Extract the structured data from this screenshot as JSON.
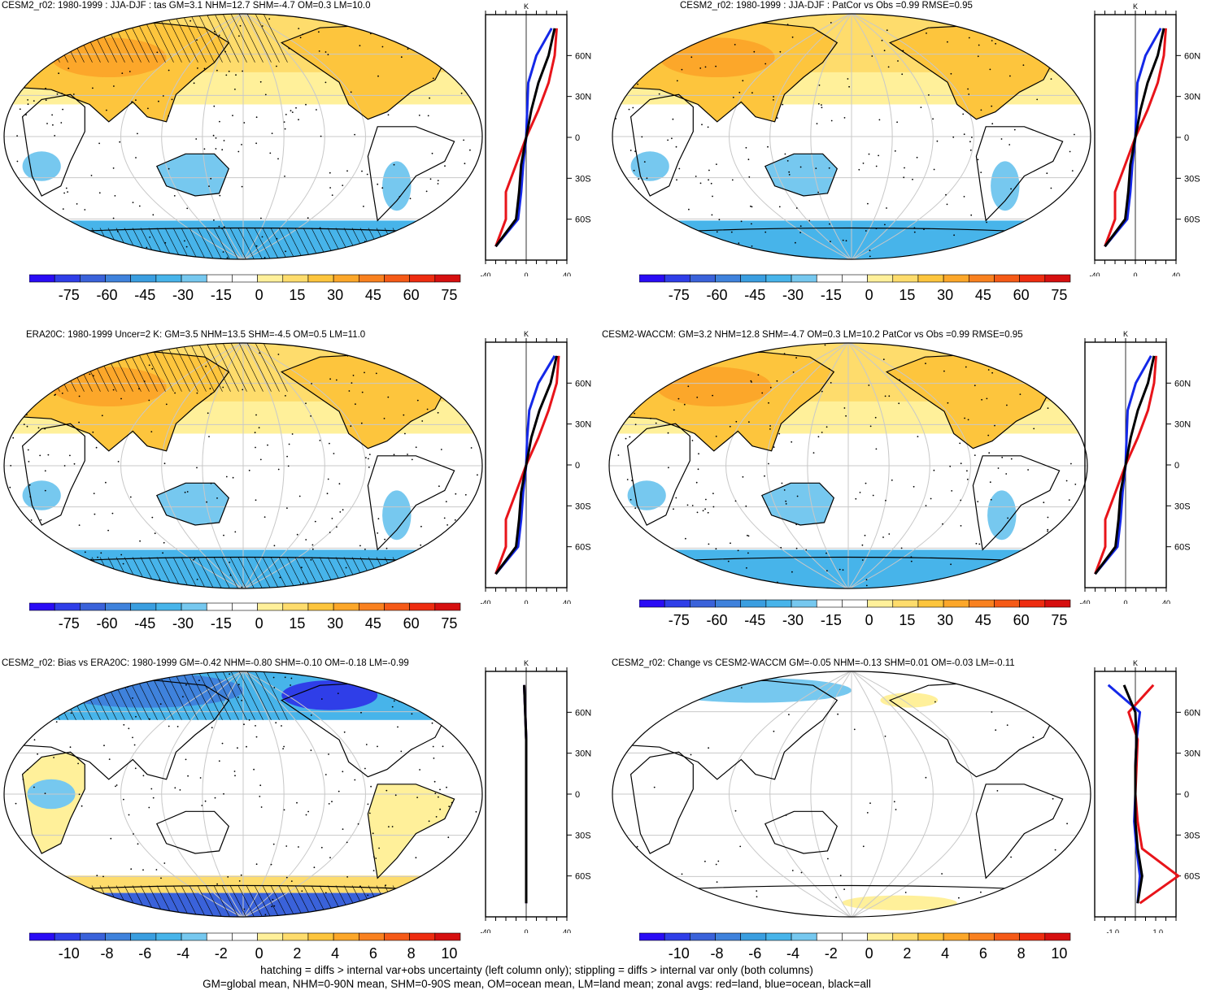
{
  "panels": [
    {
      "title": "CESM2_r02: 1980-1999 : JJA-DJF : tas GM=3.1 NHM=12.7 SHM=-4.7 OM=0.3 LM=10.0",
      "colorbar": [
        "-75",
        "-60",
        "-45",
        "-30",
        "-15",
        "0",
        "15",
        "30",
        "45",
        "60",
        "75"
      ],
      "zonal_xticks": [
        "-40",
        "0",
        "40"
      ],
      "zonal_unit": "K",
      "lat_labels": [
        "60N",
        "30N",
        "0",
        "30S",
        "60S"
      ],
      "hatching": true
    },
    {
      "title": "CESM2_r02: 1980-1999 : JJA-DJF : PatCor vs Obs =0.99 RMSE=0.95",
      "colorbar": [
        "-75",
        "-60",
        "-45",
        "-30",
        "-15",
        "0",
        "15",
        "30",
        "45",
        "60",
        "75"
      ],
      "zonal_xticks": [
        "-40",
        "0",
        "40"
      ],
      "zonal_unit": "K",
      "lat_labels": [
        "60N",
        "30N",
        "0",
        "30S",
        "60S"
      ],
      "hatching": false
    },
    {
      "title": "ERA20C: 1980-1999 Uncer=2 K: GM=3.5 NHM=13.5 SHM=-4.5 OM=0.5 LM=11.0",
      "colorbar": [
        "-75",
        "-60",
        "-45",
        "-30",
        "-15",
        "0",
        "15",
        "30",
        "45",
        "60",
        "75"
      ],
      "zonal_xticks": [
        "-40",
        "0",
        "40"
      ],
      "zonal_unit": "K",
      "lat_labels": [
        "60N",
        "30N",
        "0",
        "30S",
        "60S"
      ],
      "hatching": true
    },
    {
      "title": "CESM2-WACCM: GM=3.2 NHM=12.8 SHM=-4.7 OM=0.3 LM=10.2 PatCor vs Obs =0.99 RMSE=0.95",
      "colorbar": [
        "-75",
        "-60",
        "-45",
        "-30",
        "-15",
        "0",
        "15",
        "30",
        "45",
        "60",
        "75"
      ],
      "zonal_xticks": [
        "-40",
        "0",
        "40"
      ],
      "zonal_unit": "K",
      "lat_labels": [
        "60N",
        "30N",
        "0",
        "30S",
        "60S"
      ],
      "hatching": false
    },
    {
      "title": "CESM2_r02: Bias vs ERA20C: 1980-1999 GM=-0.42 NHM=-0.80 SHM=-0.10 OM=-0.18 LM=-0.99",
      "colorbar": [
        "-10",
        "-8",
        "-6",
        "-4",
        "-2",
        "0",
        "2",
        "4",
        "6",
        "8",
        "10"
      ],
      "zonal_xticks": [
        "-40",
        "0",
        "40"
      ],
      "zonal_unit": "K",
      "lat_labels": [
        "60N",
        "30N",
        "0",
        "30S",
        "60S"
      ],
      "hatching": true
    },
    {
      "title": "CESM2_r02: Change vs CESM2-WACCM GM=-0.05 NHM=-0.13 SHM=0.01 OM=-0.03 LM=-0.11",
      "colorbar": [
        "-10",
        "-8",
        "-6",
        "-4",
        "-2",
        "0",
        "2",
        "4",
        "6",
        "8",
        "10"
      ],
      "zonal_xticks": [
        "-1.0",
        "1.0"
      ],
      "zonal_unit": "K",
      "lat_labels": [
        "60N",
        "30N",
        "0",
        "30S",
        "60S"
      ],
      "hatching": false
    }
  ],
  "footer": {
    "line1": "hatching = diffs > internal var+obs uncertainty (left column only); stippling = diffs > internal var only (both columns)",
    "line2": "GM=global mean, NHM=0-90N mean, SHM=0-90S mean, OM=ocean mean, LM=land mean; zonal avgs: red=land, blue=ocean, black=all"
  },
  "colors": {
    "scale": [
      "#2a0cf5",
      "#2f3ee8",
      "#3a62da",
      "#3f82dc",
      "#3a9ee0",
      "#47b4ea",
      "#76c8ef",
      "#ffffff",
      "#ffffff",
      "#fff09a",
      "#fedc6c",
      "#fdc53d",
      "#fca72a",
      "#f9811f",
      "#f55a17",
      "#ee2c10",
      "#d60f0f"
    ],
    "land_series": "#e8141a",
    "ocean_series": "#1428e8",
    "all_series": "#000000",
    "grid": "#c8c8c8"
  },
  "chart_data": [
    {
      "type": "heatmap",
      "title": "CESM2_r02: 1980-1999 : JJA-DJF : tas GM=3.1 NHM=12.7 SHM=-4.7 OM=0.3 LM=10.0",
      "zonal": {
        "lat": [
          80,
          60,
          40,
          20,
          0,
          -20,
          -40,
          -60,
          -80
        ],
        "land": [
          30,
          28,
          22,
          12,
          0,
          -10,
          -20,
          -20,
          -30
        ],
        "ocean": [
          25,
          10,
          2,
          1,
          0,
          -3,
          -5,
          -8,
          -30
        ],
        "all": [
          28,
          22,
          12,
          5,
          0,
          -5,
          -7,
          -10,
          -30
        ]
      }
    },
    {
      "type": "heatmap",
      "title": "CESM2_r02: 1980-1999 : JJA-DJF : PatCor vs Obs =0.99 RMSE=0.95",
      "zonal": {
        "lat": [
          80,
          60,
          40,
          20,
          0,
          -20,
          -40,
          -60,
          -80
        ],
        "land": [
          30,
          28,
          22,
          12,
          0,
          -10,
          -20,
          -20,
          -30
        ],
        "ocean": [
          25,
          10,
          2,
          1,
          0,
          -3,
          -5,
          -8,
          -30
        ],
        "all": [
          28,
          22,
          12,
          5,
          0,
          -5,
          -7,
          -10,
          -30
        ]
      }
    },
    {
      "type": "heatmap",
      "title": "ERA20C: 1980-1999 Uncer=2 K: GM=3.5 NHM=13.5 SHM=-4.5 OM=0.5 LM=11.0",
      "zonal": {
        "lat": [
          80,
          60,
          40,
          20,
          0,
          -20,
          -40,
          -60,
          -80
        ],
        "land": [
          32,
          30,
          22,
          12,
          0,
          -10,
          -20,
          -20,
          -30
        ],
        "ocean": [
          28,
          12,
          3,
          1,
          0,
          -3,
          -5,
          -8,
          -30
        ],
        "all": [
          30,
          24,
          13,
          5,
          0,
          -5,
          -7,
          -10,
          -30
        ]
      }
    },
    {
      "type": "heatmap",
      "title": "CESM2-WACCM: GM=3.2 NHM=12.8 SHM=-4.7 OM=0.3 LM=10.2 PatCor vs Obs =0.99 RMSE=0.95",
      "zonal": {
        "lat": [
          80,
          60,
          40,
          20,
          0,
          -20,
          -40,
          -60,
          -80
        ],
        "land": [
          30,
          28,
          22,
          12,
          0,
          -10,
          -20,
          -20,
          -30
        ],
        "ocean": [
          25,
          10,
          2,
          1,
          0,
          -3,
          -5,
          -8,
          -30
        ],
        "all": [
          28,
          22,
          12,
          5,
          0,
          -5,
          -7,
          -10,
          -30
        ]
      }
    },
    {
      "type": "heatmap",
      "title": "CESM2_r02: Bias vs ERA20C: 1980-1999 GM=-0.42 NHM=-0.80 SHM=-0.10 OM=-0.18 LM=-0.99",
      "zonal": {
        "lat": [
          80,
          60,
          40,
          20,
          0,
          -20,
          -40,
          -60,
          -80
        ],
        "land": [
          -2,
          -1,
          0,
          0,
          0,
          0,
          0,
          0,
          0
        ],
        "ocean": [
          -2,
          -1,
          0,
          0,
          0,
          0,
          0,
          0,
          0
        ],
        "all": [
          -2,
          -1,
          0,
          0,
          0,
          0,
          0,
          0,
          0
        ]
      }
    },
    {
      "type": "heatmap",
      "title": "CESM2_r02: Change vs CESM2-WACCM GM=-0.05 NHM=-0.13 SHM=0.01 OM=-0.03 LM=-0.11",
      "zonal": {
        "lat": [
          80,
          60,
          40,
          20,
          0,
          -20,
          -40,
          -60,
          -80
        ],
        "land": [
          0.8,
          -0.3,
          0.1,
          0.05,
          0,
          0.1,
          0.3,
          1.9,
          0.2
        ],
        "ocean": [
          -1.2,
          0.2,
          0.05,
          0,
          0,
          -0.05,
          0.05,
          0.2,
          0.1
        ],
        "all": [
          -0.5,
          0.0,
          0.05,
          0,
          0,
          0,
          0.1,
          0.3,
          0.1
        ]
      }
    }
  ]
}
